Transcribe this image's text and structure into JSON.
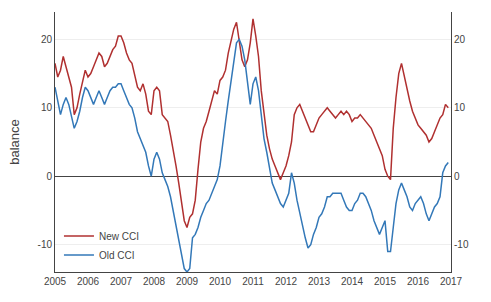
{
  "chart_data": {
    "type": "line",
    "ylabel": "balance",
    "x": [
      2005.0,
      2005.083,
      2005.167,
      2005.25,
      2005.333,
      2005.417,
      2005.5,
      2005.583,
      2005.667,
      2005.75,
      2005.833,
      2005.917,
      2006.0,
      2006.083,
      2006.167,
      2006.25,
      2006.333,
      2006.417,
      2006.5,
      2006.583,
      2006.667,
      2006.75,
      2006.833,
      2006.917,
      2007.0,
      2007.083,
      2007.167,
      2007.25,
      2007.333,
      2007.417,
      2007.5,
      2007.583,
      2007.667,
      2007.75,
      2007.833,
      2007.917,
      2008.0,
      2008.083,
      2008.167,
      2008.25,
      2008.333,
      2008.417,
      2008.5,
      2008.583,
      2008.667,
      2008.75,
      2008.833,
      2008.917,
      2009.0,
      2009.083,
      2009.167,
      2009.25,
      2009.333,
      2009.417,
      2009.5,
      2009.583,
      2009.667,
      2009.75,
      2009.833,
      2009.917,
      2010.0,
      2010.083,
      2010.167,
      2010.25,
      2010.333,
      2010.417,
      2010.5,
      2010.583,
      2010.667,
      2010.75,
      2010.833,
      2010.917,
      2011.0,
      2011.083,
      2011.167,
      2011.25,
      2011.333,
      2011.417,
      2011.5,
      2011.583,
      2011.667,
      2011.75,
      2011.833,
      2011.917,
      2012.0,
      2012.083,
      2012.167,
      2012.25,
      2012.333,
      2012.417,
      2012.5,
      2012.583,
      2012.667,
      2012.75,
      2012.833,
      2012.917,
      2013.0,
      2013.083,
      2013.167,
      2013.25,
      2013.333,
      2013.417,
      2013.5,
      2013.583,
      2013.667,
      2013.75,
      2013.833,
      2013.917,
      2014.0,
      2014.083,
      2014.167,
      2014.25,
      2014.333,
      2014.417,
      2014.5,
      2014.583,
      2014.667,
      2014.75,
      2014.833,
      2014.917,
      2015.0,
      2015.083,
      2015.167,
      2015.25,
      2015.333,
      2015.417,
      2015.5,
      2015.583,
      2015.667,
      2015.75,
      2015.833,
      2015.917,
      2016.0,
      2016.083,
      2016.167,
      2016.25,
      2016.333,
      2016.417,
      2016.5,
      2016.583,
      2016.667,
      2016.75,
      2016.833,
      2016.917
    ],
    "series": [
      {
        "name": "New CCI",
        "color": "#b03030",
        "values": [
          16.5,
          14.5,
          15.5,
          17.5,
          16.0,
          14.5,
          13.0,
          9.0,
          10.0,
          12.0,
          14.0,
          15.5,
          14.5,
          15.0,
          16.0,
          17.0,
          18.0,
          17.5,
          16.0,
          16.5,
          17.5,
          18.5,
          19.0,
          20.5,
          20.5,
          19.5,
          18.0,
          17.0,
          16.5,
          14.5,
          13.0,
          12.5,
          13.5,
          12.0,
          9.5,
          9.0,
          12.5,
          13.0,
          12.5,
          9.0,
          8.5,
          8.0,
          6.0,
          4.0,
          1.5,
          -1.0,
          -4.0,
          -6.5,
          -7.5,
          -6.0,
          -5.5,
          -3.5,
          1.0,
          5.0,
          7.0,
          8.0,
          9.5,
          11.0,
          12.5,
          12.0,
          14.0,
          14.5,
          15.5,
          18.0,
          20.0,
          21.5,
          22.5,
          19.5,
          17.0,
          16.0,
          17.0,
          19.5,
          23.0,
          20.5,
          17.5,
          12.5,
          9.0,
          6.0,
          4.0,
          2.5,
          1.5,
          0.5,
          -0.5,
          0.5,
          1.5,
          3.0,
          5.0,
          9.0,
          10.0,
          10.5,
          9.5,
          8.5,
          7.5,
          6.5,
          6.5,
          7.5,
          8.5,
          9.0,
          9.5,
          10.0,
          9.5,
          9.0,
          8.5,
          9.0,
          9.5,
          9.0,
          9.5,
          9.0,
          8.0,
          8.5,
          8.5,
          9.0,
          8.5,
          8.0,
          7.5,
          7.0,
          6.0,
          5.0,
          4.0,
          3.0,
          1.0,
          0.0,
          -0.5,
          7.0,
          11.5,
          15.0,
          16.5,
          14.5,
          12.5,
          11.0,
          9.5,
          8.5,
          7.5,
          7.0,
          6.5,
          6.0,
          5.0,
          5.5,
          6.5,
          7.5,
          8.5,
          9.0,
          10.5,
          10.0
        ]
      },
      {
        "name": "Old CCI",
        "color": "#3378b8",
        "values": [
          13.0,
          11.0,
          9.0,
          10.5,
          11.5,
          10.5,
          8.5,
          7.0,
          8.0,
          9.5,
          11.5,
          13.0,
          12.5,
          11.5,
          10.5,
          11.5,
          12.5,
          11.5,
          10.5,
          11.5,
          12.5,
          13.0,
          13.0,
          13.5,
          13.5,
          12.5,
          11.5,
          10.5,
          10.0,
          8.5,
          6.5,
          5.5,
          4.5,
          3.5,
          1.5,
          0.0,
          2.5,
          3.5,
          2.5,
          0.5,
          -0.5,
          -1.5,
          -3.0,
          -5.0,
          -7.5,
          -9.5,
          -11.5,
          -13.5,
          -14.0,
          -13.5,
          -9.0,
          -8.5,
          -7.5,
          -6.0,
          -5.0,
          -4.0,
          -3.5,
          -2.5,
          -1.5,
          -0.5,
          1.5,
          5.0,
          8.0,
          11.0,
          14.0,
          17.0,
          19.5,
          20.0,
          19.0,
          17.0,
          14.0,
          10.5,
          13.5,
          14.5,
          12.5,
          9.0,
          5.5,
          3.5,
          1.5,
          -1.0,
          -2.0,
          -3.0,
          -4.0,
          -4.5,
          -3.5,
          -2.5,
          0.5,
          -1.0,
          -3.5,
          -5.5,
          -7.5,
          -9.0,
          -10.5,
          -10.0,
          -8.5,
          -7.5,
          -6.0,
          -5.5,
          -4.5,
          -3.0,
          -3.0,
          -2.5,
          -2.5,
          -2.5,
          -2.5,
          -3.5,
          -4.5,
          -5.0,
          -5.0,
          -4.0,
          -3.5,
          -2.5,
          -2.5,
          -3.0,
          -4.0,
          -5.0,
          -6.5,
          -7.5,
          -8.5,
          -7.5,
          -6.5,
          -11.0,
          -11.0,
          -7.5,
          -4.0,
          -2.0,
          -1.0,
          -2.0,
          -3.0,
          -4.5,
          -5.0,
          -4.0,
          -3.5,
          -3.0,
          -4.0,
          -5.5,
          -6.5,
          -5.5,
          -4.5,
          -4.0,
          -3.0,
          0.5,
          1.5,
          2.0
        ]
      }
    ],
    "xlim": [
      2005.0,
      2017.0
    ],
    "xticks": [
      2005,
      2006,
      2007,
      2008,
      2009,
      2010,
      2011,
      2012,
      2013,
      2014,
      2015,
      2016,
      2017
    ],
    "ylim": [
      -14,
      24
    ],
    "yticks": [
      -10,
      0,
      10,
      20
    ],
    "y2lim": [
      -14,
      24
    ],
    "y2ticks": [
      -10,
      0,
      10,
      20
    ],
    "grid": true,
    "legend": "lower left"
  }
}
